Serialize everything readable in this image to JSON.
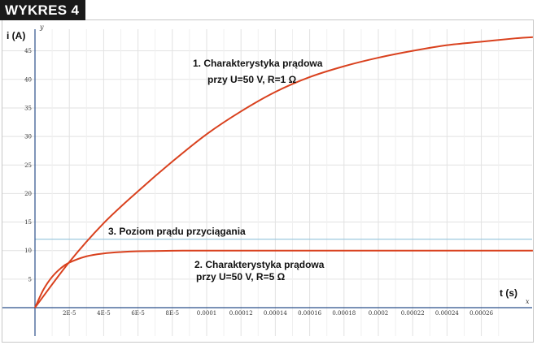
{
  "badge": "WYKRES 4",
  "chart_data": {
    "type": "line",
    "title": "",
    "xlabel": "t (s)",
    "ylabel": "i (A)",
    "x_axis_letter": "x",
    "y_axis_letter": "y",
    "xlim": [
      0,
      0.00029
    ],
    "ylim": [
      -5,
      47.5
    ],
    "grid": true,
    "x_ticks": [
      "2E-5",
      "4E-5",
      "6E-5",
      "8E-5",
      "0.0001",
      "0.00012",
      "0.00014",
      "0.00016",
      "0.00018",
      "0.0002",
      "0.00022",
      "0.00024",
      "0.00026"
    ],
    "x_tick_values": [
      2e-05,
      4e-05,
      6e-05,
      8e-05,
      0.0001,
      0.00012,
      0.00014,
      0.00016,
      0.00018,
      0.0002,
      0.00022,
      0.00024,
      0.00026
    ],
    "y_ticks": [
      "5",
      "10",
      "15",
      "20",
      "25",
      "30",
      "35",
      "40",
      "45"
    ],
    "y_tick_values": [
      5,
      10,
      15,
      20,
      25,
      30,
      35,
      40,
      45
    ],
    "series": [
      {
        "color": "#d9411e",
        "x": [
          0,
          2e-05,
          4e-05,
          6e-05,
          8e-05,
          0.0001,
          0.00012,
          0.00014,
          0.00016,
          0.00018,
          0.0002,
          0.00022,
          0.00024,
          0.00026,
          0.00028,
          0.00029
        ],
        "y": [
          0,
          8.0,
          14.8,
          20.4,
          25.6,
          30.4,
          34.4,
          37.8,
          40.4,
          42.3,
          43.8,
          45.0,
          46.0,
          46.6,
          47.2,
          47.4
        ]
      },
      {
        "color": "#d9411e",
        "x": [
          0,
          5e-06,
          1e-05,
          1.5e-05,
          2e-05,
          3e-05,
          4e-05,
          5e-05,
          6e-05,
          8e-05,
          0.0001,
          0.00014,
          0.0002,
          0.00029
        ],
        "y": [
          0,
          3.2,
          5.4,
          6.9,
          7.9,
          9.0,
          9.5,
          9.75,
          9.88,
          9.97,
          10.0,
          10.0,
          10.0,
          10.0
        ]
      }
    ],
    "hlines": [
      {
        "y": 12,
        "color": "#9ec9df"
      }
    ],
    "annotations": [
      {
        "lines": [
          "1. Charakterystyka prądowa",
          "przy  U=50 V, R=1 Ω"
        ]
      },
      {
        "lines": [
          "2. Charakterystyka prądowa",
          "przy  U=50 V, R=5 Ω"
        ]
      },
      {
        "lines": [
          "3. Poziom prądu przyciągania"
        ]
      }
    ]
  }
}
